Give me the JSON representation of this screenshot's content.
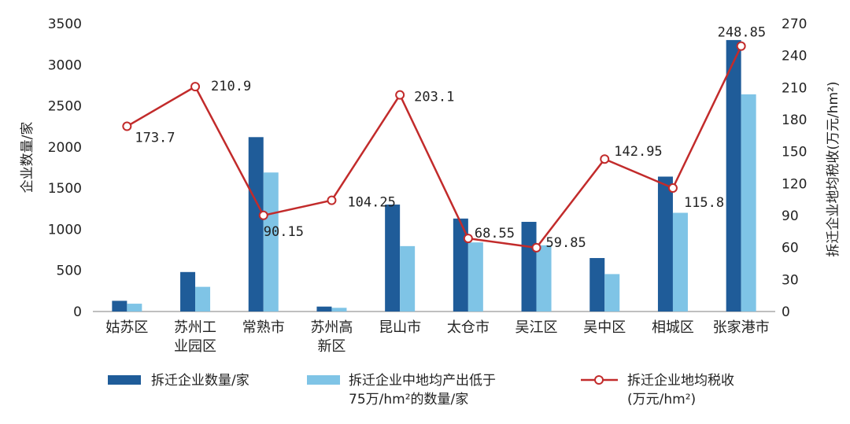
{
  "colors": {
    "bar1": "#1f5c99",
    "bar2": "#7fc4e6",
    "line": "#c22b2b",
    "axis": "#999999"
  },
  "chart_data": {
    "type": "bar",
    "categories": [
      [
        "姑苏区"
      ],
      [
        "苏州工",
        "业园区"
      ],
      [
        "常熟市"
      ],
      [
        "苏州高",
        "新区"
      ],
      [
        "昆山市"
      ],
      [
        "太仓市"
      ],
      [
        "吴江区"
      ],
      [
        "吴中区"
      ],
      [
        "相城区"
      ],
      [
        "张家港市"
      ]
    ],
    "series": [
      {
        "name": "拆迁企业数量/家",
        "axis": "left",
        "kind": "bar",
        "values": [
          130,
          480,
          2120,
          60,
          1300,
          1130,
          1090,
          650,
          1640,
          3300
        ]
      },
      {
        "name": "拆迁企业中地均产出低于75万/hm²的数量/家",
        "axis": "left",
        "kind": "bar",
        "values": [
          95,
          300,
          1690,
          45,
          795,
          840,
          805,
          455,
          1200,
          2640
        ]
      },
      {
        "name": "拆迁企业地均税收(万元/hm²)",
        "axis": "right",
        "kind": "line",
        "values": [
          173.7,
          210.9,
          90.15,
          104.25,
          203.1,
          68.55,
          59.85,
          142.95,
          115.8,
          248.85
        ],
        "labels": [
          "173.7",
          "210.9",
          "90.15",
          "104.25",
          "203.1",
          "68.55",
          "59.85",
          "142.95",
          "115.8",
          "248.85"
        ]
      }
    ],
    "yleft": {
      "label": "企业数量/家",
      "lim": [
        0,
        3500
      ],
      "ticks": [
        "0",
        "500",
        "1000",
        "1500",
        "2000",
        "2500",
        "3000",
        "3500"
      ]
    },
    "yright": {
      "label": "拆迁企业地均税收(万元/hm²)",
      "lim": [
        0,
        270
      ],
      "ticks": [
        "0",
        "30",
        "60",
        "90",
        "120",
        "150",
        "180",
        "210",
        "240",
        "270"
      ]
    },
    "legend": {
      "position": "bottom",
      "items": [
        {
          "lines": [
            "拆迁企业数量/家"
          ]
        },
        {
          "lines": [
            "拆迁企业中地均产出低于",
            "75万/hm²的数量/家"
          ]
        },
        {
          "lines": [
            "拆迁企业地均税收",
            "(万元/hm²)"
          ]
        }
      ]
    }
  }
}
